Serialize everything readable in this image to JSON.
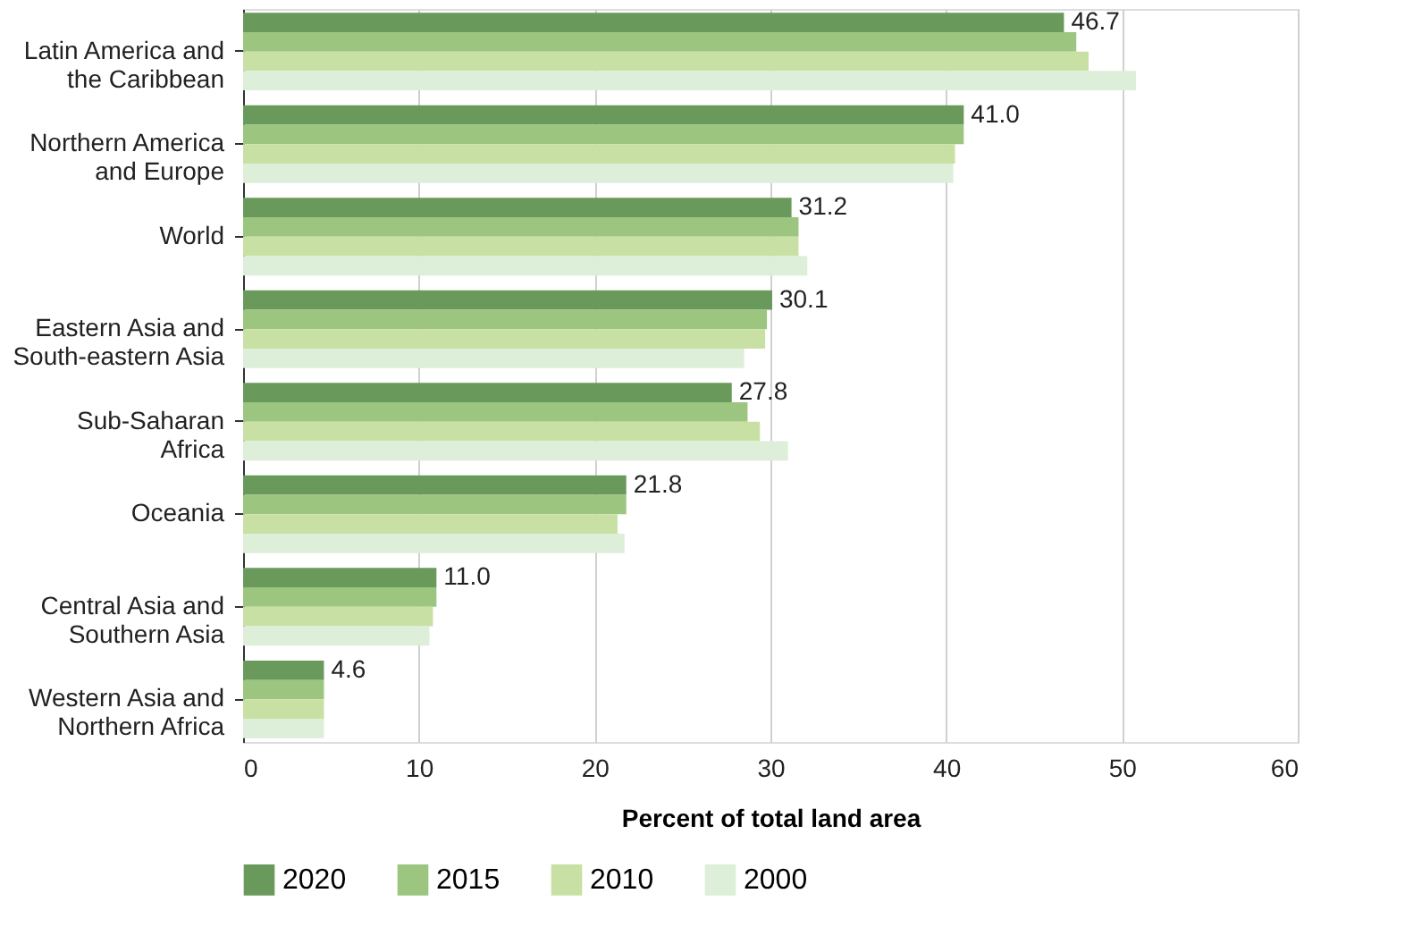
{
  "chart_data": {
    "type": "bar",
    "orientation": "horizontal",
    "xlabel": "Percent of total land area",
    "categories": [
      "Latin America and\nthe Caribbean",
      "Northern America\nand Europe",
      "World",
      "Eastern Asia and\nSouth-eastern Asia",
      "Sub-Saharan\nAfrica",
      "Oceania",
      "Central Asia and\nSouthern Asia",
      "Western Asia and\nNorthern Africa"
    ],
    "series": [
      {
        "name": "2020",
        "color": "#6a9a5b",
        "values": [
          46.7,
          41.0,
          31.2,
          30.1,
          27.8,
          21.8,
          11.0,
          4.6
        ],
        "value_labels": [
          "46.7",
          "41.0",
          "31.2",
          "30.1",
          "27.8",
          "21.8",
          "11.0",
          "4.6"
        ]
      },
      {
        "name": "2015",
        "color": "#9cc67f",
        "values": [
          47.4,
          41.0,
          31.6,
          29.8,
          28.7,
          21.8,
          11.0,
          4.6
        ]
      },
      {
        "name": "2010",
        "color": "#c9e0a4",
        "values": [
          48.1,
          40.5,
          31.6,
          29.7,
          29.4,
          21.3,
          10.8,
          4.6
        ]
      },
      {
        "name": "2000",
        "color": "#ddeed9",
        "values": [
          50.8,
          40.4,
          32.1,
          28.5,
          31.0,
          21.7,
          10.6,
          4.6
        ]
      }
    ],
    "xlim": [
      0,
      60
    ],
    "xticks": [
      0,
      10,
      20,
      30,
      40,
      50,
      60
    ],
    "grid": "x",
    "legend": "bottom"
  }
}
